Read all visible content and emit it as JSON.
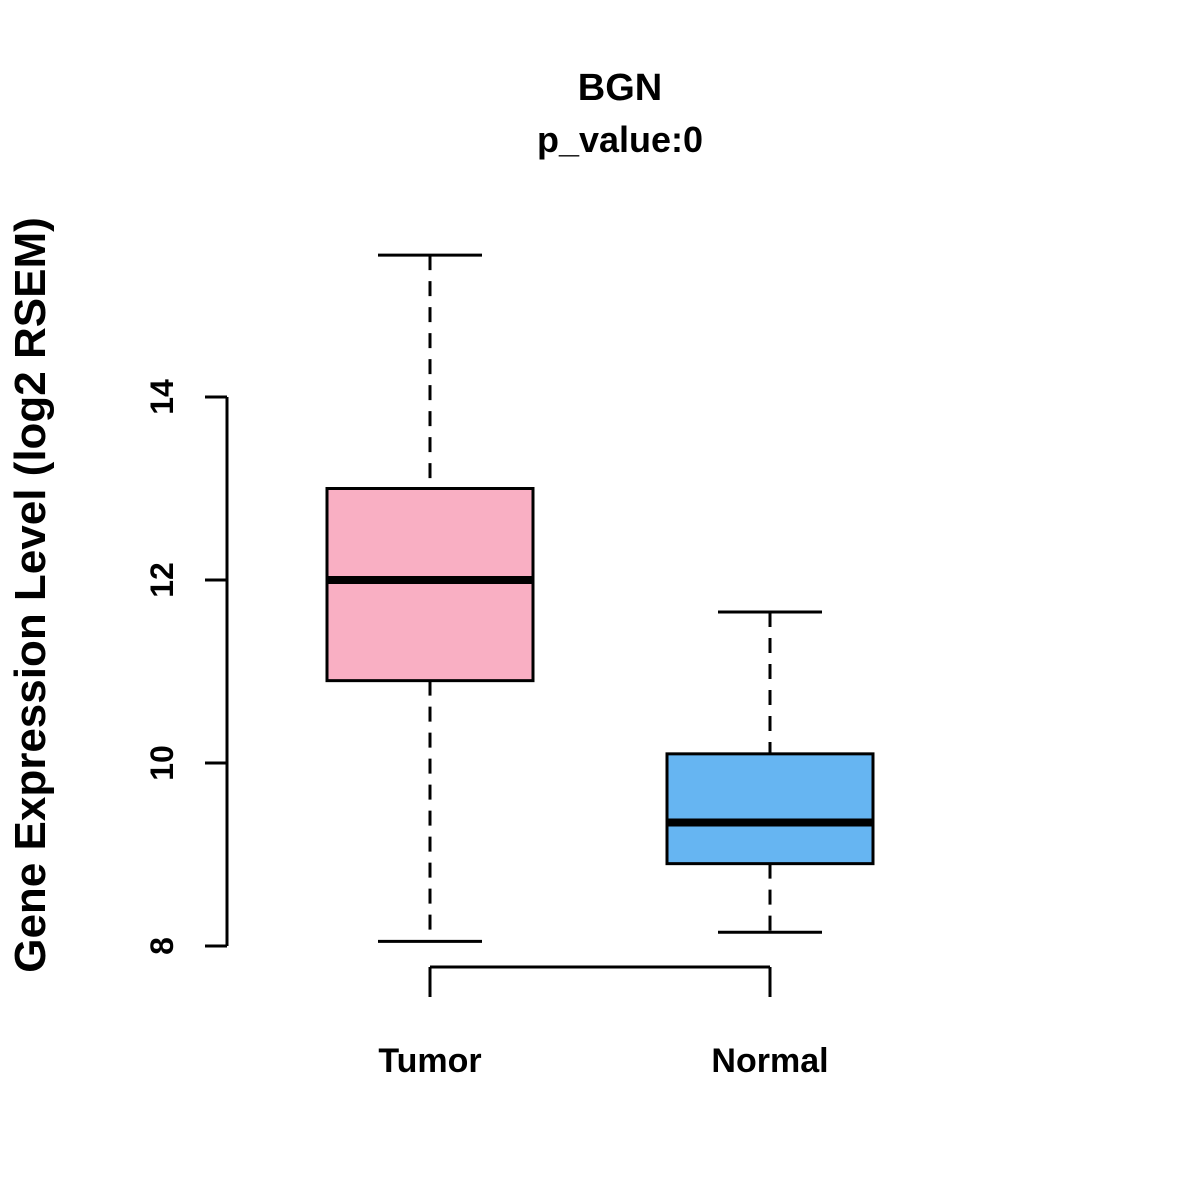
{
  "chart_data": {
    "type": "boxplot",
    "title": "BGN",
    "subtitle": "p_value:0",
    "ylabel": "Gene Expression Level (log2 RSEM)",
    "xlabel": "",
    "categories": [
      "Tumor",
      "Normal"
    ],
    "yticks": [
      8,
      10,
      12,
      14
    ],
    "ylim": [
      7.5,
      15.8
    ],
    "grid": false,
    "legend": "none",
    "series": [
      {
        "name": "Tumor",
        "color": "#F9AFC3",
        "stroke": "#000000",
        "min": 8.05,
        "q1": 10.9,
        "median": 12.0,
        "q3": 13.0,
        "max": 15.55
      },
      {
        "name": "Normal",
        "color": "#66B5F2",
        "stroke": "#000000",
        "min": 8.15,
        "q1": 8.9,
        "median": 9.35,
        "q3": 10.1,
        "max": 11.65
      }
    ]
  }
}
